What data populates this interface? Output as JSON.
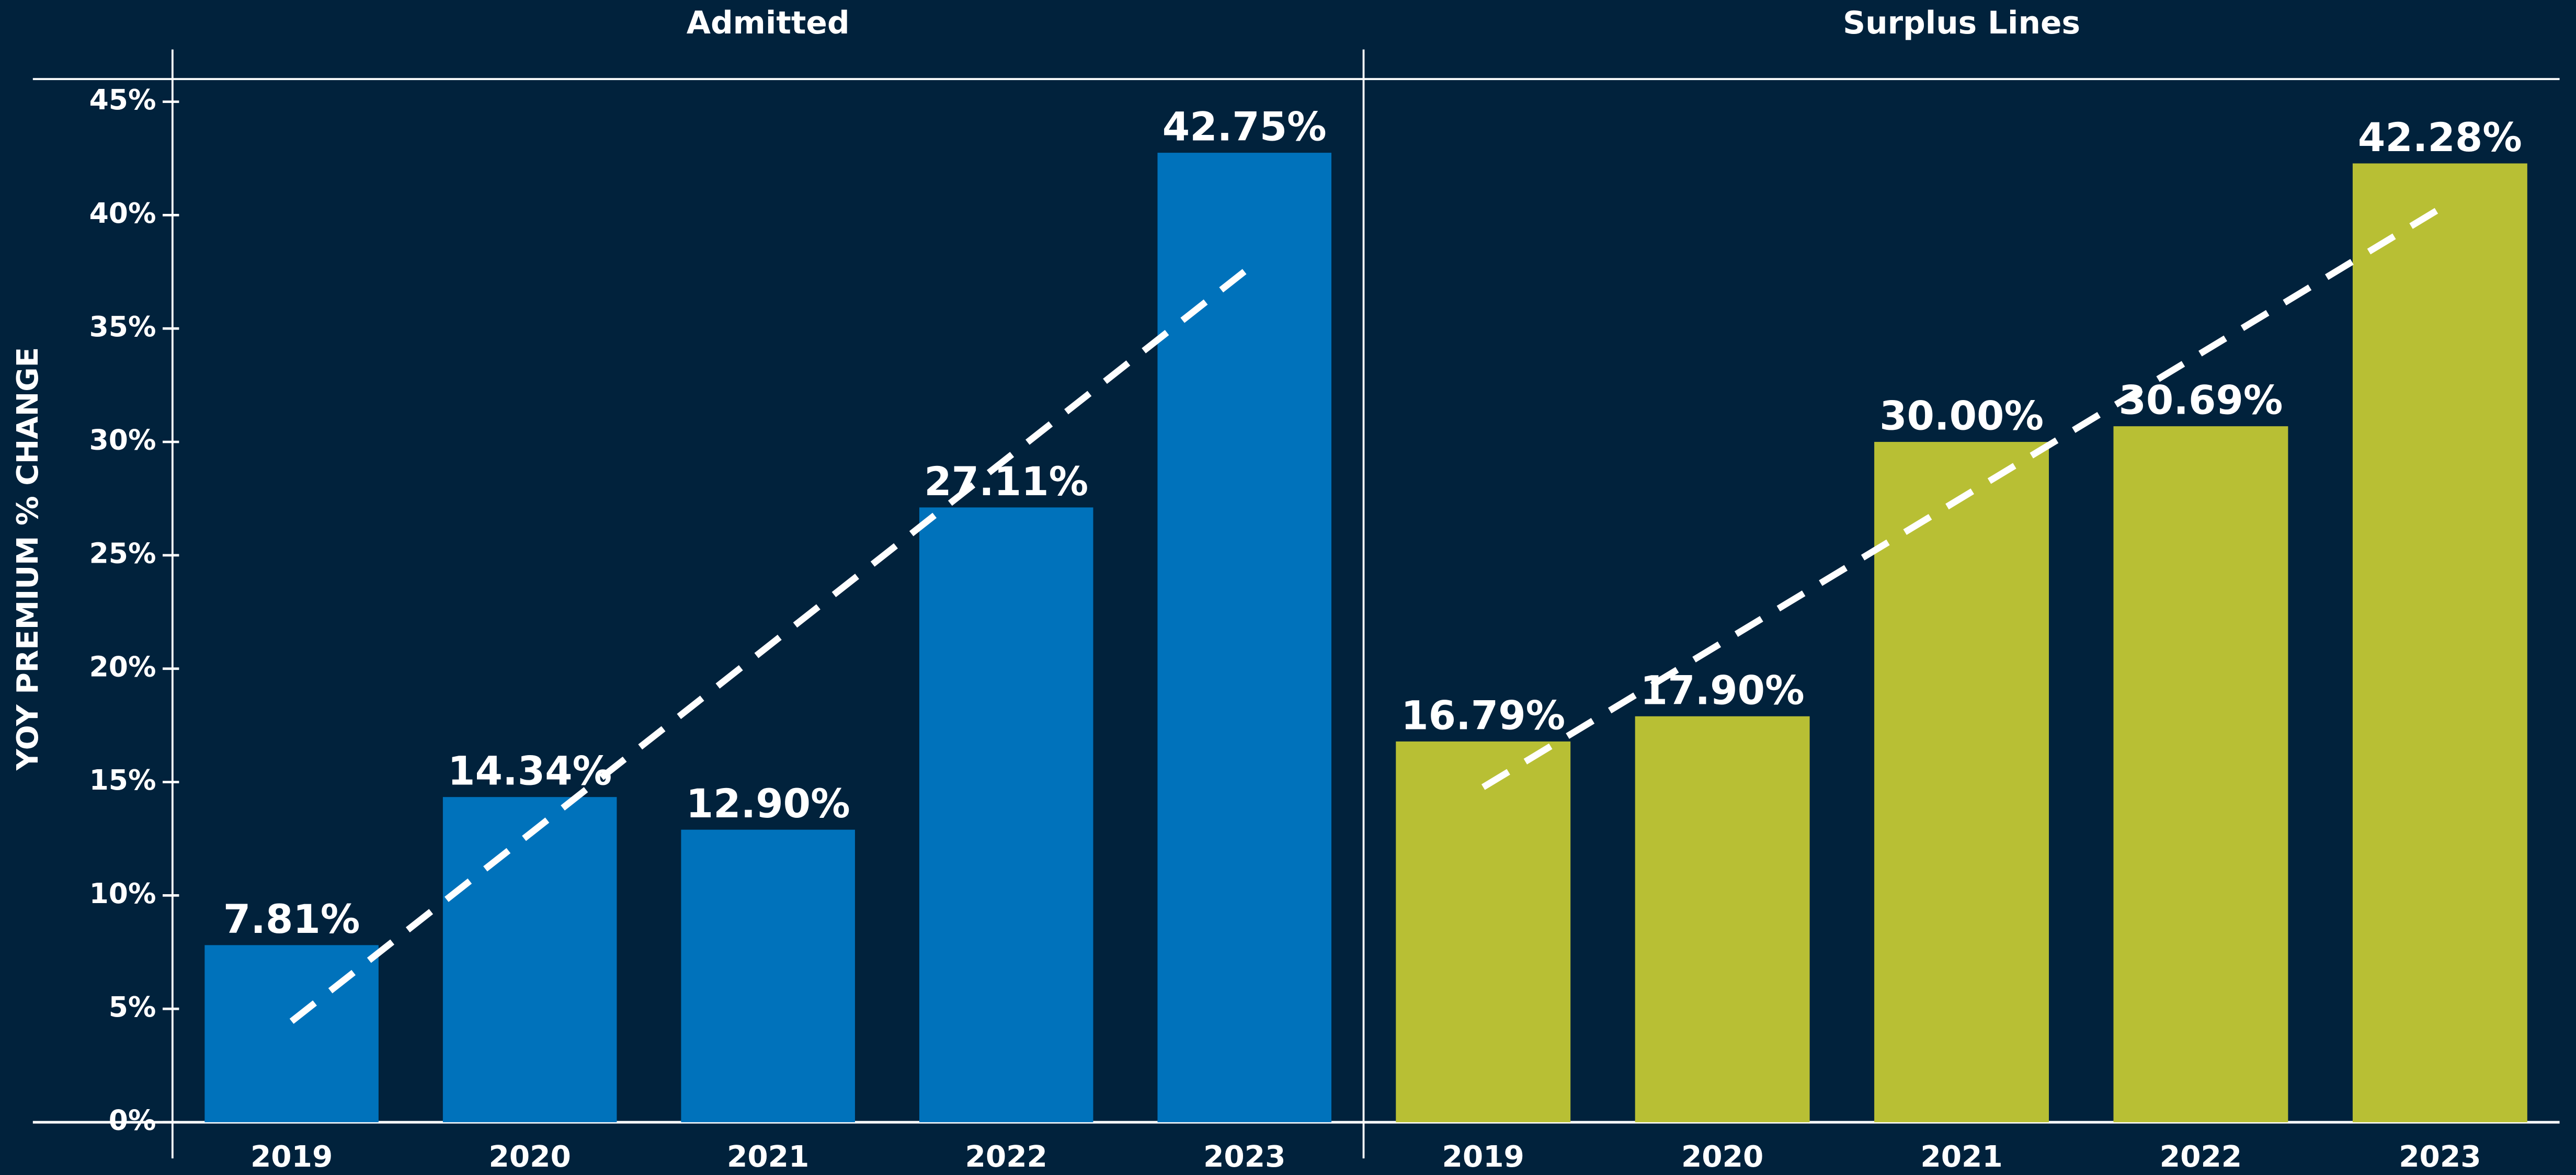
{
  "chart_data": [
    {
      "type": "bar",
      "title": "Admitted",
      "y_label": "YOY PREMIUM % CHANGE",
      "categories": [
        "2019",
        "2020",
        "2021",
        "2022",
        "2023"
      ],
      "values": [
        7.81,
        14.34,
        12.9,
        27.11,
        42.75
      ],
      "value_labels": [
        "7.81%",
        "14.34%",
        "12.90%",
        "27.11%",
        "42.75%"
      ],
      "color": "#0072bb",
      "trendline": "linear",
      "ylim": [
        0,
        46
      ],
      "yticks": [
        {
          "value": 0,
          "label": "0%"
        },
        {
          "value": 5,
          "label": "5%"
        },
        {
          "value": 10,
          "label": "10%"
        },
        {
          "value": 15,
          "label": "15%"
        },
        {
          "value": 20,
          "label": "20%"
        },
        {
          "value": 25,
          "label": "25%"
        },
        {
          "value": 30,
          "label": "30%"
        },
        {
          "value": 35,
          "label": "35%"
        },
        {
          "value": 40,
          "label": "40%"
        },
        {
          "value": 45,
          "label": "45%"
        }
      ]
    },
    {
      "type": "bar",
      "title": "Surplus Lines",
      "categories": [
        "2019",
        "2020",
        "2021",
        "2022",
        "2023"
      ],
      "values": [
        16.79,
        17.9,
        30.0,
        30.69,
        42.28
      ],
      "value_labels": [
        "16.79%",
        "17.90%",
        "30.00%",
        "30.69%",
        "42.28%"
      ],
      "color": "#b8bf34",
      "trendline": "linear",
      "ylim": [
        0,
        46
      ]
    }
  ]
}
